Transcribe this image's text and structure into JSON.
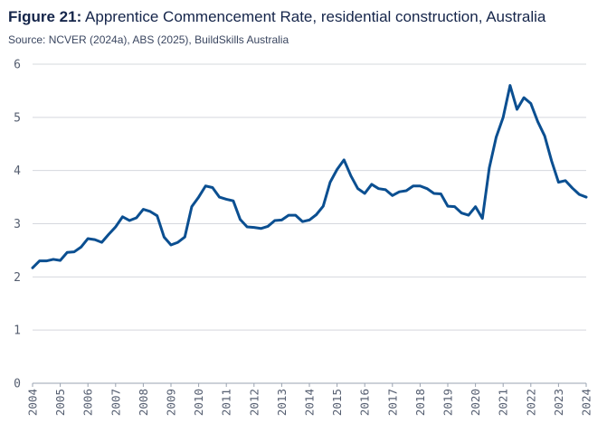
{
  "figure": {
    "label": "Figure 21:",
    "title": "Apprentice Commencement Rate, residential construction, Australia",
    "source": "Source:  NCVER (2024a), ABS (2025), BuildSkills Australia"
  },
  "chart_data": {
    "type": "line",
    "title": "Apprentice Commencement Rate, residential construction, Australia",
    "xlabel": "",
    "ylabel": "",
    "ylim": [
      0,
      6
    ],
    "xlim": [
      2004,
      2024
    ],
    "y_ticks": [
      "0",
      "1",
      "2",
      "3",
      "4",
      "5",
      "6"
    ],
    "x_ticks": [
      "2004",
      "2005",
      "2006",
      "2007",
      "2008",
      "2009",
      "2010",
      "2011",
      "2012",
      "2013",
      "2014",
      "2015",
      "2016",
      "2017",
      "2018",
      "2019",
      "2020",
      "2021",
      "2022",
      "2023",
      "2024"
    ],
    "grid": "horizontal",
    "line_color": "#0b4f91",
    "series": [
      {
        "name": "Apprentice Commencement Rate",
        "x": [
          2004.0,
          2004.25,
          2004.5,
          2004.75,
          2005.0,
          2005.25,
          2005.5,
          2005.75,
          2006.0,
          2006.25,
          2006.5,
          2006.75,
          2007.0,
          2007.25,
          2007.5,
          2007.75,
          2008.0,
          2008.25,
          2008.5,
          2008.75,
          2009.0,
          2009.25,
          2009.5,
          2009.75,
          2010.0,
          2010.25,
          2010.5,
          2010.75,
          2011.0,
          2011.25,
          2011.5,
          2011.75,
          2012.0,
          2012.25,
          2012.5,
          2012.75,
          2013.0,
          2013.25,
          2013.5,
          2013.75,
          2014.0,
          2014.25,
          2014.5,
          2014.75,
          2015.0,
          2015.25,
          2015.5,
          2015.75,
          2016.0,
          2016.25,
          2016.5,
          2016.75,
          2017.0,
          2017.25,
          2017.5,
          2017.75,
          2018.0,
          2018.25,
          2018.5,
          2018.75,
          2019.0,
          2019.25,
          2019.5,
          2019.75,
          2020.0,
          2020.25,
          2020.5,
          2020.75,
          2021.0,
          2021.25,
          2021.5,
          2021.75,
          2022.0,
          2022.25,
          2022.5,
          2022.75,
          2023.0,
          2023.25,
          2023.5,
          2023.75,
          2024.0
        ],
        "values": [
          2.17,
          2.3,
          2.3,
          2.33,
          2.31,
          2.46,
          2.47,
          2.56,
          2.72,
          2.7,
          2.65,
          2.8,
          2.94,
          3.13,
          3.06,
          3.11,
          3.27,
          3.23,
          3.15,
          2.75,
          2.6,
          2.65,
          2.75,
          3.32,
          3.5,
          3.71,
          3.68,
          3.5,
          3.46,
          3.43,
          3.08,
          2.94,
          2.93,
          2.91,
          2.95,
          3.06,
          3.07,
          3.16,
          3.16,
          3.04,
          3.07,
          3.17,
          3.33,
          3.78,
          4.02,
          4.2,
          3.9,
          3.66,
          3.57,
          3.74,
          3.66,
          3.64,
          3.53,
          3.6,
          3.62,
          3.71,
          3.71,
          3.66,
          3.57,
          3.56,
          3.33,
          3.32,
          3.2,
          3.16,
          3.32,
          3.1,
          4.05,
          4.63,
          5.0,
          5.6,
          5.15,
          5.37,
          5.26,
          4.92,
          4.65,
          4.18,
          3.78,
          3.81,
          3.67,
          3.55,
          3.5
        ]
      }
    ]
  }
}
